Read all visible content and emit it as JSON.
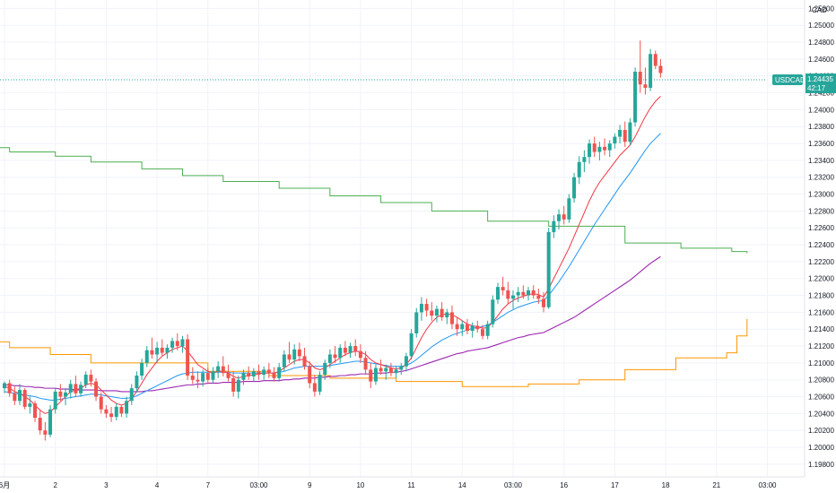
{
  "chart_data": {
    "type": "candlestick",
    "currency_label": "CAD",
    "symbol": "USDCAD",
    "last_price": "1.24435",
    "countdown": "42:17",
    "y_range": [
      1.1965,
      1.253
    ],
    "y_ticks": [
      "1.25200",
      "1.25000",
      "1.24800",
      "1.24600",
      "1.24400",
      "1.24200",
      "1.24000",
      "1.23800",
      "1.23600",
      "1.23400",
      "1.23200",
      "1.23000",
      "1.22800",
      "1.22600",
      "1.22400",
      "1.22200",
      "1.22000",
      "1.21800",
      "1.21600",
      "1.21400",
      "1.21200",
      "1.21000",
      "1.20800",
      "1.20600",
      "1.20400",
      "1.20200",
      "1.20000",
      "1.19800"
    ],
    "x_ticks": [
      "6月",
      "2",
      "3",
      "4",
      "7",
      "03:00",
      "9",
      "10",
      "11",
      "14",
      "03:00",
      "16",
      "17",
      "18",
      "21",
      "03:00"
    ],
    "x_tick_positions": [
      0,
      10,
      20,
      30,
      40,
      50,
      60,
      70,
      80,
      90,
      100,
      110,
      120,
      130,
      140,
      150
    ],
    "bars_per_session": 10,
    "grid": true,
    "colors": {
      "up": "#26a69a",
      "down": "#ef5350",
      "ma_fast": "#f23645",
      "ma_mid": "#2196f3",
      "ma_slow": "#9c27b0",
      "step_green": "#4caf50",
      "step_orange": "#ff9800",
      "price_tag": "#26a69a",
      "grid": "#f0f3fa"
    },
    "candles": [
      [
        1.207,
        1.2078,
        1.2064,
        1.2076
      ],
      [
        1.2076,
        1.208,
        1.206,
        1.2064
      ],
      [
        1.2064,
        1.2072,
        1.205,
        1.2055
      ],
      [
        1.2055,
        1.2075,
        1.205,
        1.2068
      ],
      [
        1.2068,
        1.207,
        1.2045,
        1.2048
      ],
      [
        1.2048,
        1.206,
        1.204,
        1.2052
      ],
      [
        1.2052,
        1.2055,
        1.203,
        1.2035
      ],
      [
        1.2035,
        1.2045,
        1.2015,
        1.202
      ],
      [
        1.202,
        1.203,
        1.2008,
        1.2015
      ],
      [
        1.2015,
        1.205,
        1.2012,
        1.2045
      ],
      [
        1.2045,
        1.207,
        1.204,
        1.2066
      ],
      [
        1.2066,
        1.2075,
        1.2055,
        1.206
      ],
      [
        1.206,
        1.207,
        1.205,
        1.2065
      ],
      [
        1.2065,
        1.208,
        1.2058,
        1.2075
      ],
      [
        1.2075,
        1.2085,
        1.206,
        1.2064
      ],
      [
        1.2064,
        1.2078,
        1.206,
        1.2074
      ],
      [
        1.2074,
        1.209,
        1.207,
        1.2086
      ],
      [
        1.2086,
        1.2092,
        1.2072,
        1.2078
      ],
      [
        1.2078,
        1.2082,
        1.2055,
        1.206
      ],
      [
        1.206,
        1.2065,
        1.204,
        1.2045
      ],
      [
        1.2045,
        1.205,
        1.2035,
        1.204
      ],
      [
        1.204,
        1.2048,
        1.203,
        1.2036
      ],
      [
        1.2036,
        1.2052,
        1.2032,
        1.2048
      ],
      [
        1.2048,
        1.205,
        1.2036,
        1.204
      ],
      [
        1.204,
        1.206,
        1.2035,
        1.2055
      ],
      [
        1.2055,
        1.2075,
        1.205,
        1.207
      ],
      [
        1.207,
        1.209,
        1.2065,
        1.2085
      ],
      [
        1.2085,
        1.2105,
        1.208,
        1.21
      ],
      [
        1.21,
        1.212,
        1.2095,
        1.2115
      ],
      [
        1.2115,
        1.213,
        1.2105,
        1.211
      ],
      [
        1.211,
        1.2125,
        1.21,
        1.2118
      ],
      [
        1.2118,
        1.2128,
        1.2108,
        1.2112
      ],
      [
        1.2112,
        1.2122,
        1.2105,
        1.2118
      ],
      [
        1.2118,
        1.213,
        1.2112,
        1.2126
      ],
      [
        1.2126,
        1.2135,
        1.2115,
        1.212
      ],
      [
        1.212,
        1.2132,
        1.2112,
        1.2128
      ],
      [
        1.2128,
        1.2134,
        1.208,
        1.2085
      ],
      [
        1.2085,
        1.2095,
        1.2075,
        1.208
      ],
      [
        1.208,
        1.209,
        1.207,
        1.2078
      ],
      [
        1.2078,
        1.2092,
        1.2072,
        1.2088
      ],
      [
        1.2088,
        1.2094,
        1.2075,
        1.208
      ],
      [
        1.208,
        1.2095,
        1.2076,
        1.209
      ],
      [
        1.209,
        1.2102,
        1.2082,
        1.2096
      ],
      [
        1.2096,
        1.2108,
        1.2084,
        1.2088
      ],
      [
        1.2088,
        1.2098,
        1.2078,
        1.2082
      ],
      [
        1.2082,
        1.209,
        1.206,
        1.2066
      ],
      [
        1.2066,
        1.2085,
        1.2058,
        1.208
      ],
      [
        1.208,
        1.2092,
        1.2074,
        1.2088
      ],
      [
        1.2088,
        1.2096,
        1.208,
        1.2084
      ],
      [
        1.2084,
        1.2094,
        1.2078,
        1.209
      ],
      [
        1.209,
        1.2098,
        1.208,
        1.2086
      ],
      [
        1.2086,
        1.2096,
        1.208,
        1.2092
      ],
      [
        1.2092,
        1.21,
        1.2082,
        1.2088
      ],
      [
        1.2088,
        1.2095,
        1.2078,
        1.2082
      ],
      [
        1.2082,
        1.21,
        1.2078,
        1.2095
      ],
      [
        1.2095,
        1.2115,
        1.209,
        1.211
      ],
      [
        1.211,
        1.2125,
        1.21,
        1.2104
      ],
      [
        1.2104,
        1.2122,
        1.2098,
        1.2116
      ],
      [
        1.2116,
        1.2124,
        1.2102,
        1.2108
      ],
      [
        1.2108,
        1.2118,
        1.2092,
        1.2096
      ],
      [
        1.2096,
        1.2102,
        1.207,
        1.2076
      ],
      [
        1.2076,
        1.2086,
        1.206,
        1.2066
      ],
      [
        1.2066,
        1.209,
        1.2062,
        1.2086
      ],
      [
        1.2086,
        1.2104,
        1.208,
        1.21
      ],
      [
        1.21,
        1.2116,
        1.2094,
        1.211
      ],
      [
        1.211,
        1.212,
        1.21,
        1.2106
      ],
      [
        1.2106,
        1.2122,
        1.21,
        1.2118
      ],
      [
        1.2118,
        1.2126,
        1.2108,
        1.2112
      ],
      [
        1.2112,
        1.2124,
        1.2106,
        1.212
      ],
      [
        1.212,
        1.2128,
        1.2108,
        1.2114
      ],
      [
        1.2114,
        1.2122,
        1.21,
        1.2106
      ],
      [
        1.2106,
        1.2114,
        1.2086,
        1.2092
      ],
      [
        1.2092,
        1.21,
        1.207,
        1.2078
      ],
      [
        1.2078,
        1.2098,
        1.2074,
        1.2094
      ],
      [
        1.2094,
        1.2104,
        1.2086,
        1.209
      ],
      [
        1.209,
        1.2098,
        1.208,
        1.2094
      ],
      [
        1.2094,
        1.21,
        1.2084,
        1.2088
      ],
      [
        1.2088,
        1.2096,
        1.2082,
        1.2092
      ],
      [
        1.2092,
        1.21,
        1.2086,
        1.2096
      ],
      [
        1.2096,
        1.2112,
        1.209,
        1.2108
      ],
      [
        1.2108,
        1.214,
        1.2104,
        1.2135
      ],
      [
        1.2135,
        1.2165,
        1.213,
        1.216
      ],
      [
        1.216,
        1.2178,
        1.215,
        1.217
      ],
      [
        1.217,
        1.2176,
        1.2155,
        1.2162
      ],
      [
        1.2162,
        1.2172,
        1.215,
        1.2156
      ],
      [
        1.2156,
        1.2168,
        1.2148,
        1.2164
      ],
      [
        1.2164,
        1.2172,
        1.215,
        1.2154
      ],
      [
        1.2154,
        1.2164,
        1.2146,
        1.216
      ],
      [
        1.216,
        1.2168,
        1.214,
        1.2146
      ],
      [
        1.2146,
        1.2154,
        1.2132,
        1.214
      ],
      [
        1.214,
        1.215,
        1.2132,
        1.2146
      ],
      [
        1.2146,
        1.2152,
        1.2134,
        1.2138
      ],
      [
        1.2138,
        1.2148,
        1.213,
        1.2144
      ],
      [
        1.2144,
        1.215,
        1.2136,
        1.214
      ],
      [
        1.214,
        1.2145,
        1.2128,
        1.2132
      ],
      [
        1.2132,
        1.215,
        1.2128,
        1.2146
      ],
      [
        1.2146,
        1.218,
        1.2142,
        1.2175
      ],
      [
        1.2175,
        1.2195,
        1.217,
        1.219
      ],
      [
        1.219,
        1.2202,
        1.218,
        1.2186
      ],
      [
        1.2186,
        1.2196,
        1.217,
        1.2176
      ],
      [
        1.2176,
        1.2186,
        1.2164,
        1.218
      ],
      [
        1.218,
        1.219,
        1.2172,
        1.2184
      ],
      [
        1.2184,
        1.2192,
        1.2176,
        1.218
      ],
      [
        1.218,
        1.219,
        1.2174,
        1.2186
      ],
      [
        1.2186,
        1.2192,
        1.2176,
        1.218
      ],
      [
        1.218,
        1.2188,
        1.217,
        1.2176
      ],
      [
        1.2176,
        1.2184,
        1.216,
        1.2166
      ],
      [
        1.2166,
        1.226,
        1.2164,
        1.2255
      ],
      [
        1.2255,
        1.2275,
        1.2248,
        1.2268
      ],
      [
        1.2268,
        1.2282,
        1.2258,
        1.2276
      ],
      [
        1.2276,
        1.2286,
        1.2264,
        1.227
      ],
      [
        1.227,
        1.23,
        1.2266,
        1.2295
      ],
      [
        1.2295,
        1.2325,
        1.229,
        1.232
      ],
      [
        1.232,
        1.2345,
        1.2312,
        1.2338
      ],
      [
        1.2338,
        1.2352,
        1.2326,
        1.2344
      ],
      [
        1.2344,
        1.2365,
        1.2336,
        1.236
      ],
      [
        1.236,
        1.2368,
        1.2344,
        1.235
      ],
      [
        1.235,
        1.2362,
        1.234,
        1.2356
      ],
      [
        1.2356,
        1.2366,
        1.2346,
        1.2352
      ],
      [
        1.2352,
        1.2364,
        1.2344,
        1.236
      ],
      [
        1.236,
        1.2372,
        1.2354,
        1.2368
      ],
      [
        1.2368,
        1.2382,
        1.236,
        1.2376
      ],
      [
        1.2376,
        1.2386,
        1.2356,
        1.2362
      ],
      [
        1.2362,
        1.239,
        1.2358,
        1.2385
      ],
      [
        1.2385,
        1.245,
        1.238,
        1.2445
      ],
      [
        1.2445,
        1.2482,
        1.242,
        1.243
      ],
      [
        1.243,
        1.245,
        1.2418,
        1.2426
      ],
      [
        1.2426,
        1.2472,
        1.2422,
        1.2466
      ],
      [
        1.2466,
        1.247,
        1.2448,
        1.2452
      ],
      [
        1.2452,
        1.246,
        1.2438,
        1.24435
      ]
    ],
    "ma_fast": [
      1.2072,
      1.207,
      1.2066,
      1.2064,
      1.206,
      1.2056,
      1.205,
      1.2044,
      1.204,
      1.2042,
      1.2048,
      1.2054,
      1.206,
      1.2066,
      1.2068,
      1.207,
      1.2074,
      1.2076,
      1.2074,
      1.2068,
      1.2062,
      1.2056,
      1.2052,
      1.205,
      1.2052,
      1.2058,
      1.2066,
      1.2076,
      1.2086,
      1.2094,
      1.2102,
      1.2108,
      1.2112,
      1.2116,
      1.2118,
      1.212,
      1.2114,
      1.2106,
      1.2098,
      1.2094,
      1.209,
      1.2088,
      1.209,
      1.209,
      1.2088,
      1.2084,
      1.2082,
      1.2084,
      1.2085,
      1.2086,
      1.2087,
      1.2088,
      1.2088,
      1.2088,
      1.209,
      1.2094,
      1.2098,
      1.2102,
      1.2104,
      1.2104,
      1.21,
      1.2094,
      1.2092,
      1.2094,
      1.2098,
      1.2102,
      1.2106,
      1.211,
      1.2112,
      1.2114,
      1.2113,
      1.211,
      1.2104,
      1.21,
      1.2098,
      1.2096,
      1.2094,
      1.2093,
      1.2094,
      1.2098,
      1.2106,
      1.2118,
      1.213,
      1.214,
      1.2148,
      1.2154,
      1.2157,
      1.2158,
      1.2157,
      1.2154,
      1.215,
      1.2146,
      1.2144,
      1.2143,
      1.2141,
      1.2142,
      1.2148,
      1.2156,
      1.2164,
      1.217,
      1.2174,
      1.2177,
      1.2179,
      1.2181,
      1.2182,
      1.2181,
      1.2178,
      1.2188,
      1.22,
      1.2212,
      1.2224,
      1.2236,
      1.225,
      1.2264,
      1.2278,
      1.2292,
      1.2304,
      1.2314,
      1.2322,
      1.233,
      1.2338,
      1.2346,
      1.2352,
      1.2358,
      1.2368,
      1.238,
      1.2392,
      1.2402,
      1.241,
      1.2416
    ],
    "ma_mid": [
      1.2066,
      1.2065,
      1.2064,
      1.2063,
      1.2062,
      1.2061,
      1.206,
      1.2058,
      1.2057,
      1.2056,
      1.2056,
      1.2057,
      1.2058,
      1.2059,
      1.206,
      1.2061,
      1.2062,
      1.2063,
      1.2063,
      1.2062,
      1.2061,
      1.206,
      1.2059,
      1.2058,
      1.2058,
      1.2059,
      1.2061,
      1.2064,
      1.2067,
      1.207,
      1.2073,
      1.2076,
      1.2079,
      1.2082,
      1.2085,
      1.2087,
      1.2088,
      1.2089,
      1.2089,
      1.2089,
      1.2089,
      1.2089,
      1.2089,
      1.2089,
      1.2089,
      1.2088,
      1.2088,
      1.2088,
      1.2088,
      1.2088,
      1.2088,
      1.2088,
      1.2088,
      1.2088,
      1.2089,
      1.209,
      1.2092,
      1.2094,
      1.2095,
      1.2096,
      1.2096,
      1.2096,
      1.2096,
      1.2096,
      1.2097,
      1.2098,
      1.2099,
      1.21,
      1.2101,
      1.2102,
      1.2102,
      1.2101,
      1.21,
      1.2099,
      1.2098,
      1.2097,
      1.2096,
      1.2096,
      1.2096,
      1.2097,
      1.21,
      1.2104,
      1.2109,
      1.2114,
      1.2119,
      1.2123,
      1.2127,
      1.213,
      1.2133,
      1.2135,
      1.2137,
      1.2139,
      1.2141,
      1.2142,
      1.2143,
      1.2145,
      1.2148,
      1.2152,
      1.2156,
      1.216,
      1.2163,
      1.2166,
      1.2168,
      1.217,
      1.2172,
      1.2173,
      1.2174,
      1.218,
      1.2188,
      1.2196,
      1.2205,
      1.2214,
      1.2224,
      1.2234,
      1.2244,
      1.2254,
      1.2264,
      1.2273,
      1.2282,
      1.2291,
      1.23,
      1.2309,
      1.2317,
      1.2325,
      1.2334,
      1.2343,
      1.2352,
      1.236,
      1.2366,
      1.2372
    ],
    "ma_slow": [
      1.2074,
      1.2074,
      1.2073,
      1.2073,
      1.2072,
      1.2072,
      1.2071,
      1.2071,
      1.207,
      1.207,
      1.207,
      1.2069,
      1.2069,
      1.2069,
      1.2068,
      1.2068,
      1.2068,
      1.2068,
      1.2068,
      1.2067,
      1.2067,
      1.2067,
      1.2067,
      1.2066,
      1.2066,
      1.2066,
      1.2066,
      1.2066,
      1.2067,
      1.2067,
      1.2068,
      1.2069,
      1.207,
      1.2071,
      1.2072,
      1.2073,
      1.2074,
      1.2074,
      1.2075,
      1.2075,
      1.2076,
      1.2076,
      1.2076,
      1.2077,
      1.2077,
      1.2077,
      1.2077,
      1.2078,
      1.2078,
      1.2078,
      1.2078,
      1.2079,
      1.2079,
      1.2079,
      1.2079,
      1.208,
      1.208,
      1.2081,
      1.2081,
      1.2082,
      1.2082,
      1.2082,
      1.2083,
      1.2083,
      1.2084,
      1.2084,
      1.2085,
      1.2085,
      1.2086,
      1.2086,
      1.2087,
      1.2087,
      1.2087,
      1.2088,
      1.2088,
      1.2088,
      1.2089,
      1.2089,
      1.209,
      1.2091,
      1.2093,
      1.2095,
      1.2097,
      1.2099,
      1.2101,
      1.2103,
      1.2105,
      1.2107,
      1.2109,
      1.2111,
      1.2112,
      1.2114,
      1.2115,
      1.2116,
      1.2117,
      1.2118,
      1.212,
      1.2122,
      1.2124,
      1.2126,
      1.2128,
      1.213,
      1.2131,
      1.2133,
      1.2134,
      1.2135,
      1.2136,
      1.2139,
      1.2142,
      1.2145,
      1.2148,
      1.2151,
      1.2154,
      1.2158,
      1.2162,
      1.2166,
      1.217,
      1.2174,
      1.2178,
      1.2182,
      1.2186,
      1.219,
      1.2194,
      1.2198,
      1.2203,
      1.2208,
      1.2213,
      1.2218,
      1.2222,
      1.2226
    ],
    "step_green": [
      [
        -4,
        1.2355
      ],
      [
        1,
        1.235
      ],
      [
        10,
        1.2345
      ],
      [
        17,
        1.2338
      ],
      [
        27,
        1.233
      ],
      [
        35,
        1.2322
      ],
      [
        43,
        1.2315
      ],
      [
        54,
        1.2307
      ],
      [
        64,
        1.2298
      ],
      [
        74,
        1.229
      ],
      [
        84,
        1.228
      ],
      [
        95,
        1.2268
      ],
      [
        107,
        1.2262
      ],
      [
        122,
        1.2242
      ],
      [
        133,
        1.2236
      ],
      [
        143,
        1.2232
      ],
      [
        146,
        1.223
      ]
    ],
    "step_orange": [
      [
        -4,
        1.2125
      ],
      [
        1,
        1.2118
      ],
      [
        9,
        1.211
      ],
      [
        17,
        1.21
      ],
      [
        27,
        1.21
      ],
      [
        40,
        1.209
      ],
      [
        52,
        1.2085
      ],
      [
        64,
        1.2082
      ],
      [
        77,
        1.2078
      ],
      [
        90,
        1.2072
      ],
      [
        103,
        1.2075
      ],
      [
        113,
        1.208
      ],
      [
        122,
        1.2092
      ],
      [
        132,
        1.2106
      ],
      [
        142,
        1.2112
      ],
      [
        144,
        1.2132
      ],
      [
        146,
        1.2152
      ]
    ]
  }
}
